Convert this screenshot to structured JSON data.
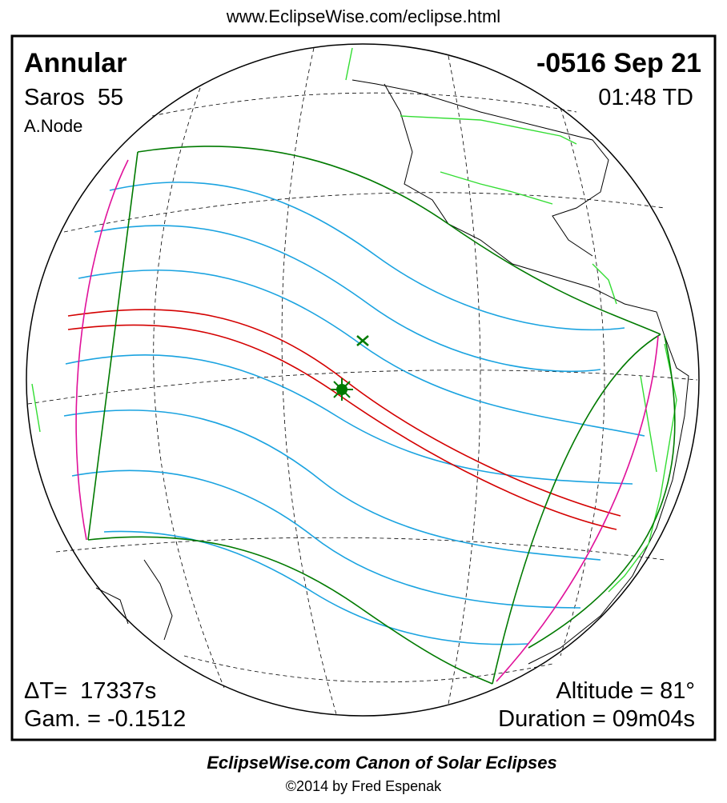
{
  "header": {
    "url": "www.EclipseWise.com/eclipse.html"
  },
  "panel": {
    "eclipse_type": "Annular",
    "saros": "Saros  55",
    "node": "A.Node",
    "date": "-0516 Sep 21",
    "time": "01:48 TD",
    "delta_t": "ΔT=  17337s",
    "gamma": "Gam. = -0.1512",
    "altitude": "Altitude = 81°",
    "duration": "Duration = 09m04s"
  },
  "footer": {
    "title": "EclipseWise.com Canon of Solar Eclipses",
    "copyright": "©2014 by Fred Espenak"
  }
}
